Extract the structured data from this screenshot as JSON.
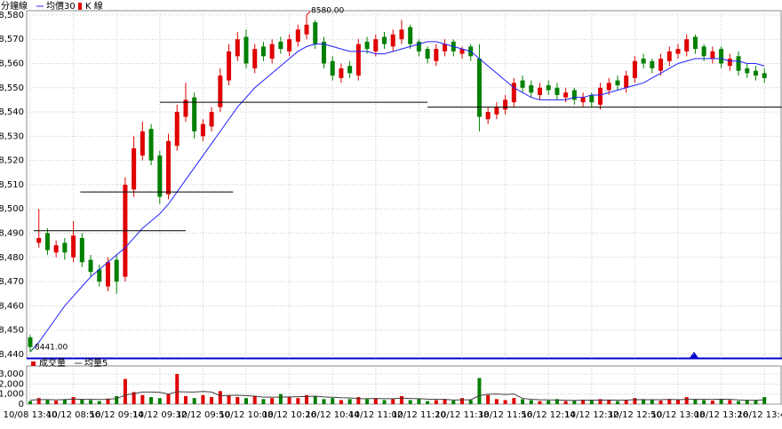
{
  "chart_data": {
    "type": "candlestick",
    "title": "分鐘線",
    "candle_name": "K 線",
    "categories": [
      "10/08 13:40",
      null,
      null,
      null,
      null,
      "10/12 08:56",
      null,
      null,
      null,
      null,
      "10/12 09:14",
      null,
      null,
      null,
      null,
      "10/12 09:32",
      null,
      null,
      null,
      null,
      "10/12 09:50",
      null,
      null,
      null,
      null,
      "10/12 10:08",
      null,
      null,
      null,
      null,
      "10/12 10:26",
      null,
      null,
      null,
      null,
      "10/12 10:44",
      null,
      null,
      null,
      null,
      "10/12 11:02",
      null,
      null,
      null,
      null,
      "10/12 11:20",
      null,
      null,
      null,
      null,
      "10/12 11:38",
      null,
      null,
      null,
      null,
      "10/12 11:56",
      null,
      null,
      null,
      null,
      "10/12 12:14",
      null,
      null,
      null,
      null,
      "10/12 12:32",
      null,
      null,
      null,
      null,
      "10/12 12:50",
      null,
      null,
      null,
      null,
      "10/12 13:08",
      null,
      null,
      null,
      null,
      "10/12 13:26",
      null,
      null,
      null,
      null,
      "10/12 13:44"
    ],
    "open": [
      8447,
      8486,
      8490,
      8482,
      8486,
      8480,
      8488,
      8479,
      8475,
      8468,
      8479,
      8472,
      8508,
      8522,
      8533,
      8522,
      8506,
      8526,
      8538,
      8546,
      8530,
      8534,
      8542,
      8553,
      8563,
      8571,
      8558,
      8567,
      8562,
      8569,
      8565,
      8569,
      8572,
      8577,
      8569,
      8561,
      8554,
      8559,
      8555,
      8569,
      8565,
      8571,
      8567,
      8570,
      8575,
      8569,
      8566,
      8561,
      8565,
      8569,
      8564,
      8567,
      8562,
      8537,
      8539,
      8541,
      8544,
      8553,
      8551,
      8547,
      8551,
      8550,
      8546,
      8549,
      8544,
      8547,
      8543,
      8549,
      8553,
      8550,
      8554,
      8562,
      8561,
      8557,
      8561,
      8564,
      8565,
      8571,
      8567,
      8562,
      8566,
      8559,
      8563,
      8558,
      8557,
      8556
    ],
    "high": [
      8448,
      8500,
      8492,
      8487,
      8488,
      8495,
      8490,
      8481,
      8477,
      8480,
      8481,
      8513,
      8530,
      8536,
      8535,
      8524,
      8531,
      8543,
      8552,
      8548,
      8537,
      8542,
      8558,
      8568,
      8573,
      8574,
      8568,
      8569,
      8570,
      8571,
      8572,
      8576,
      8580,
      8578,
      8571,
      8563,
      8560,
      8561,
      8570,
      8571,
      8572,
      8573,
      8574,
      8578,
      8576,
      8570,
      8567,
      8568,
      8570,
      8570,
      8567,
      8568,
      8568,
      8542,
      8544,
      8547,
      8554,
      8555,
      8553,
      8552,
      8553,
      8552,
      8550,
      8550,
      8548,
      8548,
      8552,
      8554,
      8555,
      8557,
      8563,
      8564,
      8562,
      8564,
      8567,
      8568,
      8572,
      8572,
      8568,
      8567,
      8567,
      8564,
      8565,
      8560,
      8559,
      8558
    ],
    "low": [
      8441,
      8484,
      8481,
      8480,
      8479,
      8478,
      8476,
      8472,
      8468,
      8466,
      8465,
      8470,
      8505,
      8520,
      8518,
      8502,
      8504,
      8524,
      8536,
      8529,
      8528,
      8532,
      8540,
      8551,
      8561,
      8558,
      8556,
      8561,
      8560,
      8564,
      8563,
      8567,
      8570,
      8566,
      8558,
      8553,
      8552,
      8554,
      8553,
      8564,
      8563,
      8566,
      8565,
      8568,
      8566,
      8563,
      8560,
      8559,
      8563,
      8563,
      8562,
      8561,
      8532,
      8535,
      8537,
      8539,
      8542,
      8548,
      8546,
      8545,
      8547,
      8545,
      8544,
      8543,
      8542,
      8542,
      8541,
      8547,
      8549,
      8548,
      8552,
      8558,
      8556,
      8555,
      8559,
      8562,
      8563,
      8564,
      8561,
      8560,
      8558,
      8557,
      8555,
      8554,
      8553,
      8552
    ],
    "close": [
      8443,
      8488,
      8483,
      8485,
      8482,
      8489,
      8478,
      8474,
      8470,
      8478,
      8470,
      8510,
      8525,
      8532,
      8520,
      8505,
      8528,
      8540,
      8545,
      8532,
      8535,
      8540,
      8555,
      8565,
      8570,
      8560,
      8566,
      8563,
      8568,
      8566,
      8570,
      8574,
      8576,
      8568,
      8560,
      8555,
      8558,
      8556,
      8568,
      8566,
      8570,
      8568,
      8572,
      8574,
      8568,
      8565,
      8562,
      8566,
      8568,
      8565,
      8566,
      8563,
      8538,
      8540,
      8542,
      8545,
      8552,
      8550,
      8548,
      8550,
      8549,
      8547,
      8548,
      8545,
      8546,
      8544,
      8550,
      8552,
      8551,
      8555,
      8561,
      8560,
      8558,
      8562,
      8565,
      8566,
      8570,
      8566,
      8563,
      8565,
      8560,
      8562,
      8557,
      8556,
      8555,
      8554
    ],
    "up_color": "#e00000",
    "down_color": "#008000",
    "series": [
      {
        "name": "均價30",
        "color": "#2020ff",
        "values": [
          8441,
          8445,
          8450,
          8455,
          8460,
          8464,
          8468,
          8472,
          8475,
          8478,
          8481,
          8484,
          8488,
          8492,
          8495,
          8498,
          8502,
          8507,
          8512,
          8517,
          8522,
          8527,
          8532,
          8537,
          8542,
          8546,
          8550,
          8553,
          8556,
          8559,
          8562,
          8565,
          8567,
          8568,
          8568,
          8567,
          8566,
          8565,
          8565,
          8565,
          8564,
          8564,
          8565,
          8566,
          8567,
          8568,
          8569,
          8569,
          8568,
          8567,
          8566,
          8565,
          8562,
          8559,
          8556,
          8553,
          8550,
          8548,
          8546,
          8545,
          8545,
          8545,
          8545,
          8546,
          8546,
          8547,
          8547,
          8548,
          8549,
          8550,
          8551,
          8552,
          8554,
          8556,
          8558,
          8560,
          8561,
          8562,
          8562,
          8562,
          8562,
          8561,
          8561,
          8560,
          8560,
          8559
        ]
      }
    ],
    "ylim": [
      8438.5,
      8581.8
    ],
    "yticks": [
      {
        "value": 8440,
        "label": "8,440"
      },
      {
        "value": 8450,
        "label": "8,450"
      },
      {
        "value": 8460,
        "label": "8,460"
      },
      {
        "value": 8470,
        "label": "8,470"
      },
      {
        "value": 8480,
        "label": "8,480"
      },
      {
        "value": 8490,
        "label": "8,490"
      },
      {
        "value": 8500,
        "label": "8,500"
      },
      {
        "value": 8510,
        "label": "8,510"
      },
      {
        "value": 8520,
        "label": "8,520"
      },
      {
        "value": 8530,
        "label": "8,530"
      },
      {
        "value": 8540,
        "label": "8,540"
      },
      {
        "value": 8550,
        "label": "8,550"
      },
      {
        "value": 8560,
        "label": "8,560"
      },
      {
        "value": 8570,
        "label": "8,570"
      },
      {
        "value": 8580,
        "label": "8,580"
      }
    ],
    "grid": true,
    "annotations": [
      {
        "text": "8580.00",
        "x": 32,
        "y": 8580,
        "color": "#e00000"
      },
      {
        "text": "8441.00",
        "x": 0,
        "y": 8441,
        "color": "#008000"
      }
    ],
    "levels": [
      {
        "y": 8491,
        "from": 0.4,
        "to": 18
      },
      {
        "y": 8507,
        "from": 5.8,
        "to": 23.5
      },
      {
        "y": 8544,
        "from": 15,
        "to": 46
      },
      {
        "y": 8542,
        "from": 46,
        "to": 87
      }
    ],
    "volume": {
      "ylim": [
        0,
        3800
      ],
      "yticks": [
        0,
        {
          "value": 1000,
          "label": "1,000"
        },
        {
          "value": 2000,
          "label": "2,000"
        },
        {
          "value": 3000,
          "label": "3,000"
        }
      ],
      "series": [
        {
          "name": "成交量",
          "color": "#e00000",
          "values": [
            300,
            600,
            400,
            350,
            500,
            700,
            450,
            400,
            300,
            550,
            800,
            2500,
            1200,
            900,
            700,
            600,
            1000,
            3000,
            800,
            600,
            900,
            700,
            1300,
            900,
            700,
            600,
            800,
            500,
            600,
            1000,
            700,
            600,
            900,
            800,
            500,
            600,
            400,
            500,
            700,
            500,
            600,
            400,
            500,
            800,
            400,
            500,
            300,
            400,
            500,
            350,
            600,
            400,
            2600,
            900,
            500,
            400,
            600,
            500,
            400,
            300,
            350,
            500,
            300,
            400,
            450,
            350,
            500,
            400,
            300,
            400,
            600,
            500,
            400,
            350,
            500,
            400,
            700,
            500,
            400,
            350,
            500,
            400,
            300,
            350,
            400,
            700
          ]
        },
        {
          "name": "均量5",
          "color": "#404040",
          "values": [
            400,
            450,
            450,
            430,
            450,
            510,
            480,
            480,
            460,
            480,
            560,
            900,
            1050,
            1200,
            1200,
            1180,
            1000,
            1240,
            1220,
            1200,
            1260,
            1200,
            840,
            860,
            880,
            840,
            800,
            700,
            700,
            700,
            720,
            740,
            760,
            800,
            720,
            680,
            640,
            620,
            540,
            540,
            560,
            540,
            540,
            600,
            560,
            540,
            500,
            480,
            480,
            410,
            430,
            430,
            850,
            980,
            1000,
            960,
            1000,
            580,
            480,
            440,
            420,
            410,
            390,
            370,
            400,
            400,
            400,
            410,
            400,
            400,
            450,
            440,
            440,
            440,
            470,
            440,
            470,
            470,
            470,
            470,
            490,
            480,
            420,
            390,
            390,
            430
          ]
        }
      ]
    }
  }
}
